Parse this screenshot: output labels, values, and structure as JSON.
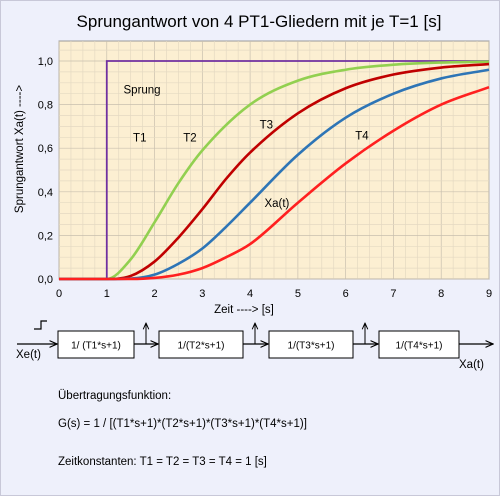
{
  "chart_data": {
    "type": "line",
    "title": "Sprungantwort  von 4 PT1-Gliedern  mit  je T=1 [s]",
    "xlabel": "Zeit ----> [s]",
    "ylabel": "Sprungantwort  Xa(t)  ---->",
    "xlim": [
      0,
      9
    ],
    "ylim": [
      0,
      1.0
    ],
    "x_ticks": [
      "0",
      "1",
      "2",
      "3",
      "4",
      "5",
      "6",
      "7",
      "8",
      "9"
    ],
    "y_ticks": [
      "0,0",
      "0,2",
      "0,4",
      "0,6",
      "0,8",
      "1,0"
    ],
    "grid": true,
    "step_time": 1,
    "series": [
      {
        "name": "Sprung",
        "color": "#7030a0",
        "x": [
          0,
          1,
          1,
          9
        ],
        "y": [
          0,
          0,
          1,
          1
        ]
      },
      {
        "name": "T1",
        "color": "#92d050",
        "x": [
          0,
          1,
          1.5,
          2,
          2.5,
          3,
          4,
          5,
          6,
          7,
          8,
          9
        ],
        "y": [
          0,
          0,
          0.09,
          0.26,
          0.44,
          0.59,
          0.8,
          0.91,
          0.96,
          0.983,
          0.993,
          0.997
        ]
      },
      {
        "name": "T2",
        "color": "#c00000",
        "x": [
          0,
          1,
          1.5,
          2,
          2.5,
          3,
          3.5,
          4,
          5,
          6,
          7,
          8,
          9
        ],
        "y": [
          0,
          0,
          0.014,
          0.08,
          0.19,
          0.32,
          0.46,
          0.58,
          0.76,
          0.875,
          0.938,
          0.97,
          0.986
        ]
      },
      {
        "name": "T3",
        "color": "#2e75b6",
        "x": [
          0,
          1,
          1.5,
          2,
          2.5,
          3,
          3.5,
          4,
          5,
          6,
          7,
          8,
          9
        ],
        "y": [
          0,
          0,
          0.002,
          0.02,
          0.07,
          0.14,
          0.24,
          0.35,
          0.57,
          0.74,
          0.85,
          0.92,
          0.96
        ]
      },
      {
        "name": "T4",
        "color": "#ff2020",
        "x": [
          0,
          1,
          1.5,
          2,
          2.5,
          3,
          3.5,
          4,
          5,
          6,
          7,
          8,
          9
        ],
        "y": [
          0,
          0,
          0.0002,
          0.005,
          0.02,
          0.05,
          0.1,
          0.16,
          0.35,
          0.53,
          0.68,
          0.8,
          0.88
        ]
      }
    ],
    "annotations": [
      {
        "text": "Sprung",
        "x": 1.35,
        "y": 0.85
      },
      {
        "text": "T1",
        "x": 1.55,
        "y": 0.63
      },
      {
        "text": "T2",
        "x": 2.6,
        "y": 0.63
      },
      {
        "text": "T3",
        "x": 4.2,
        "y": 0.69
      },
      {
        "text": "T4",
        "x": 6.2,
        "y": 0.64
      },
      {
        "text": "Xa(t)",
        "x": 4.3,
        "y": 0.33
      }
    ]
  },
  "diagram": {
    "input_label": "Xe(t)",
    "output_label": "Xa(t)",
    "blocks": [
      "1/ (T1*s+1)",
      "1/(T2*s+1)",
      "1/(T3*s+1)",
      "1/(T4*s+1)"
    ]
  },
  "text": {
    "transfer_heading": "Übertragungsfunktion:",
    "formula": "G(s) = 1 / [(T1*s+1)*(T2*s+1)*(T3*s+1)*(T4*s+1)]",
    "constants": "Zeitkonstanten:  T1 = T2 = T3 = T4 = 1 [s]"
  }
}
